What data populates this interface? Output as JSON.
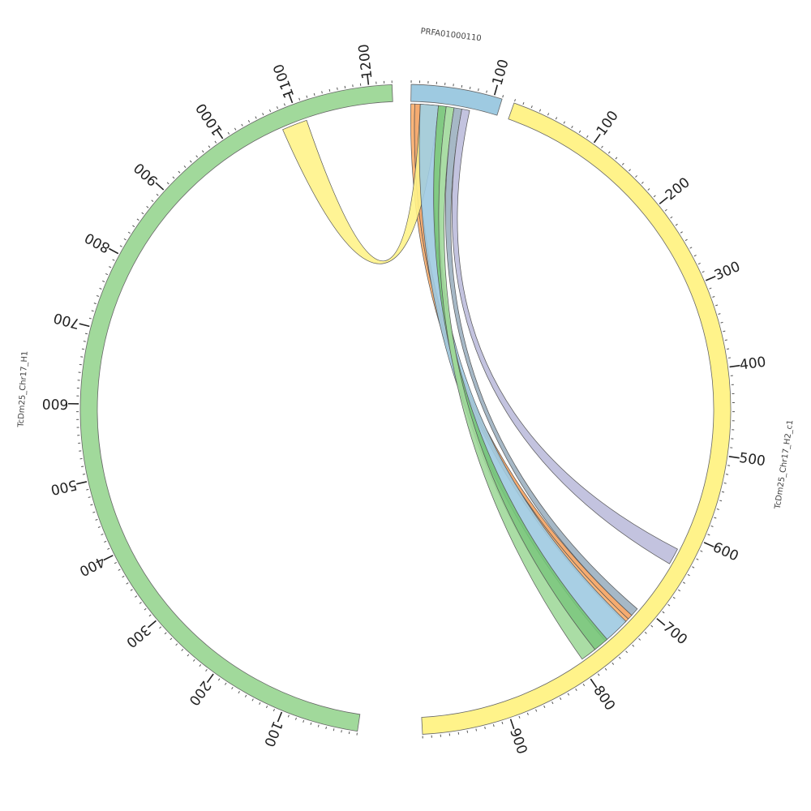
{
  "segments": [
    {
      "id": "prfa",
      "name": "PRFA01000110",
      "length": 110,
      "color": "#9ecae1",
      "ticks": [
        100
      ]
    },
    {
      "id": "h2",
      "name": "TcDm25_Chr17_H2_c1",
      "length": 1000,
      "color": "#fff38a",
      "ticks": [
        100,
        200,
        300,
        400,
        500,
        600,
        700,
        800,
        900
      ]
    },
    {
      "id": "h1",
      "name": "TcDm25_Chr17_H1",
      "length": 1230,
      "color": "#a1d99b",
      "ticks": [
        100,
        200,
        300,
        400,
        500,
        600,
        700,
        800,
        900,
        1000,
        1100,
        1200
      ]
    }
  ],
  "links": [
    {
      "from": [
        "prfa",
        0,
        5
      ],
      "to": [
        "h2",
        722,
        728
      ],
      "color": "#fdae6b"
    },
    {
      "from": [
        "prfa",
        5,
        12
      ],
      "to": [
        "h2",
        716,
        722
      ],
      "color": "#f4a261"
    },
    {
      "from": [
        "prfa",
        12,
        35
      ],
      "to": [
        "h1",
        1075,
        1110
      ],
      "color": "#fff38a"
    },
    {
      "from": [
        "prfa",
        12,
        35
      ],
      "to": [
        "h2",
        726,
        760
      ],
      "color": "#9ecae1"
    },
    {
      "from": [
        "prfa",
        35,
        45
      ],
      "to": [
        "h2",
        757,
        776
      ],
      "color": "#74c476"
    },
    {
      "from": [
        "prfa",
        45,
        55
      ],
      "to": [
        "h2",
        776,
        795
      ],
      "color": "#a1d99b"
    },
    {
      "from": [
        "prfa",
        55,
        65
      ],
      "to": [
        "h2",
        706,
        716
      ],
      "color": "#9cb0c0"
    },
    {
      "from": [
        "prfa",
        65,
        75
      ],
      "to": [
        "h2",
        620,
        640
      ],
      "color": "#bcbddc"
    }
  ]
}
